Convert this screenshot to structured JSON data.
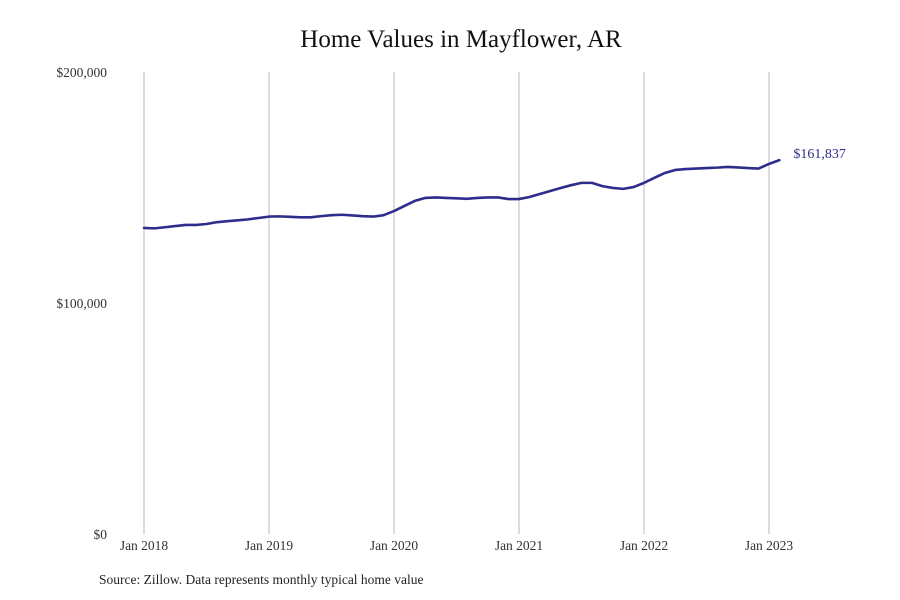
{
  "chart_data": {
    "type": "line",
    "title": "Home Values in Mayflower, AR",
    "source": "Source: Zillow. Data represents monthly typical home value",
    "xlabel": "",
    "ylabel": "",
    "ylim": [
      0,
      200000
    ],
    "y_ticks": [
      {
        "value": 0,
        "label": "$0"
      },
      {
        "value": 100000,
        "label": "$100,000"
      },
      {
        "value": 200000,
        "label": "$200,000"
      }
    ],
    "x_ticks": [
      {
        "value": 2018,
        "label": "Jan 2018"
      },
      {
        "value": 2019,
        "label": "Jan 2019"
      },
      {
        "value": 2020,
        "label": "Jan 2020"
      },
      {
        "value": 2021,
        "label": "Jan 2021"
      },
      {
        "value": 2022,
        "label": "Jan 2022"
      },
      {
        "value": 2023,
        "label": "Jan 2023"
      }
    ],
    "grid": "vertical",
    "line_color": "#2e2d8c",
    "end_label": "$161,837",
    "series": [
      {
        "name": "Typical home value",
        "start": "2018-01",
        "frequency": "monthly",
        "values": [
          132500,
          132300,
          132800,
          133300,
          133800,
          133800,
          134200,
          135000,
          135400,
          135800,
          136200,
          136800,
          137400,
          137500,
          137300,
          137100,
          137100,
          137600,
          138000,
          138200,
          137900,
          137600,
          137400,
          138000,
          139800,
          142000,
          144200,
          145500,
          145700,
          145500,
          145300,
          145100,
          145500,
          145700,
          145700,
          145000,
          145000,
          145900,
          147200,
          148500,
          149800,
          151000,
          152000,
          152000,
          150600,
          149800,
          149400,
          150200,
          152000,
          154200,
          156300,
          157600,
          158000,
          158200,
          158400,
          158600,
          158900,
          158700,
          158400,
          158200,
          160200,
          161837
        ]
      }
    ]
  }
}
